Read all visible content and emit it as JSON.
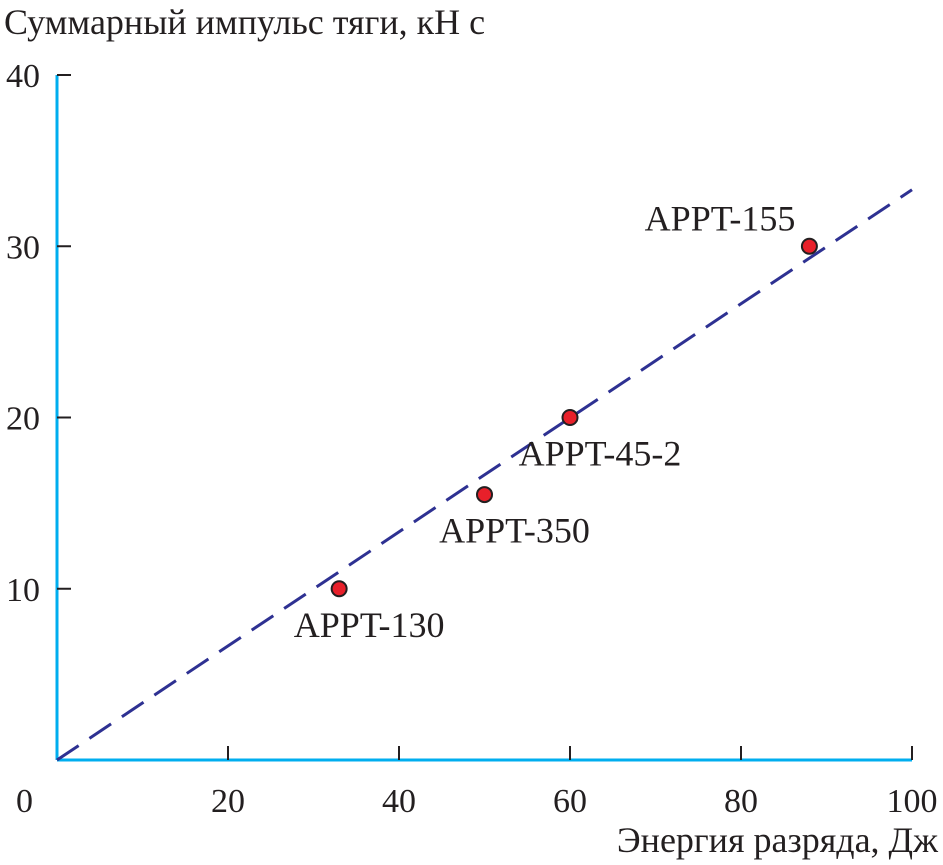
{
  "chart_data": {
    "type": "scatter",
    "title": "",
    "ylabel": "Суммарный импульс тяги, кН с",
    "xlabel": "Энергия разряда, Дж",
    "xlim": [
      0,
      100
    ],
    "ylim": [
      0,
      40
    ],
    "x_ticks": [
      0,
      20,
      40,
      60,
      80,
      100
    ],
    "y_ticks": [
      10,
      20,
      30,
      40
    ],
    "grid": false,
    "colors": {
      "axis": "#00aeef",
      "fit_line": "#2e3192",
      "point_fill": "#e8202a",
      "point_stroke": "#231f20",
      "text": "#231f20"
    },
    "points": [
      {
        "label": "APPT-130",
        "x": 33,
        "y": 10,
        "label_pos": "below"
      },
      {
        "label": "APPT-350",
        "x": 50,
        "y": 15.5,
        "label_pos": "below"
      },
      {
        "label": "APPT-45-2",
        "x": 60,
        "y": 20,
        "label_pos": "below"
      },
      {
        "label": "APPT-155",
        "x": 88,
        "y": 30,
        "label_pos": "above-left"
      }
    ],
    "fit_line": {
      "style": "dashed",
      "x": [
        0,
        100
      ],
      "y": [
        0,
        33.3
      ]
    }
  }
}
